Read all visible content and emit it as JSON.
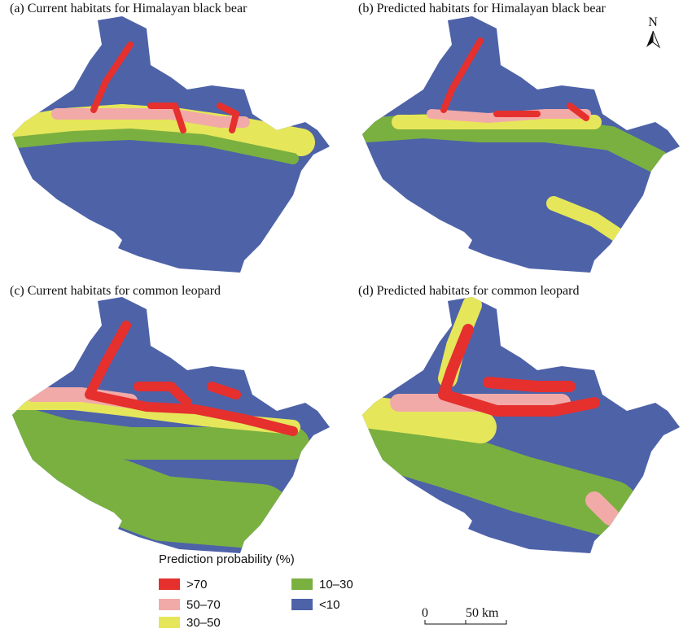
{
  "panels": [
    {
      "title": "(a) Current habitats for Himalayan black bear"
    },
    {
      "title": "(b) Predicted habitats for Himalayan black bear"
    },
    {
      "title": "(c) Current habitats for common leopard"
    },
    {
      "title": "(d) Predicted habitats for common leopard"
    }
  ],
  "legend": {
    "title": "Prediction probability (%)",
    "items": [
      {
        "label": ">70",
        "color": "#e5302e"
      },
      {
        "label": "50–70",
        "color": "#f2aaa8"
      },
      {
        "label": "30–50",
        "color": "#e6e65a"
      },
      {
        "label": "10–30",
        "color": "#7ab040"
      },
      {
        "label": "<10",
        "color": "#4e62a8"
      }
    ]
  },
  "scale_bar": {
    "labels": [
      "0",
      "50 km"
    ]
  },
  "north_arrow": {
    "label": "N"
  }
}
